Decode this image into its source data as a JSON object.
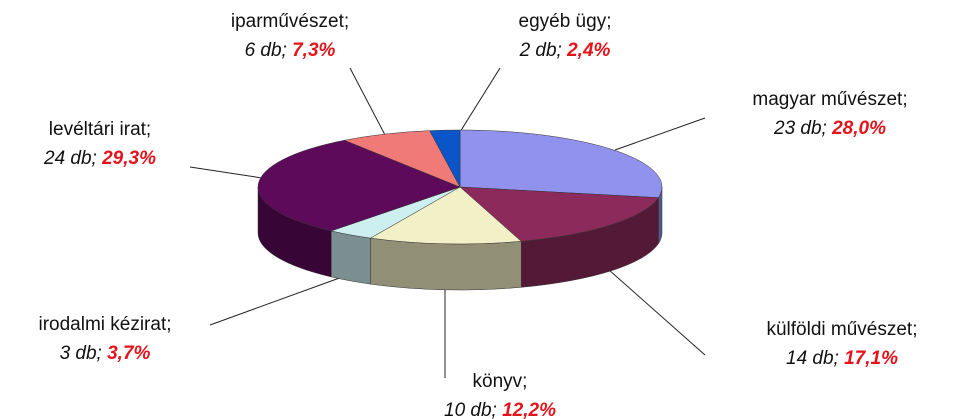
{
  "chart_data": {
    "type": "pie3d",
    "categories": [
      "magyar művészet;",
      "külföldi művészet;",
      "könyv;",
      "irodalmi kézirat;",
      "levéltári irat;",
      "iparművészet;",
      "egyéb ügy;"
    ],
    "counts": [
      23,
      14,
      10,
      3,
      24,
      6,
      2
    ],
    "count_labels": [
      "23 db;",
      "14 db;",
      "10 db;",
      "3 db;",
      "24 db;",
      "6 db;",
      "2 db;"
    ],
    "values": [
      28.0,
      17.1,
      12.2,
      3.7,
      29.3,
      7.3,
      2.4
    ],
    "value_labels": [
      "28,0%",
      "17,1%",
      "12,2%",
      "3,7%",
      "29,3%",
      "7,3%",
      "2,4%"
    ],
    "colors": [
      "#9191ee",
      "#8c2a5c",
      "#f2f0c6",
      "#cdeff0",
      "#5e0a5a",
      "#ef7a78",
      "#0a55c8"
    ]
  }
}
